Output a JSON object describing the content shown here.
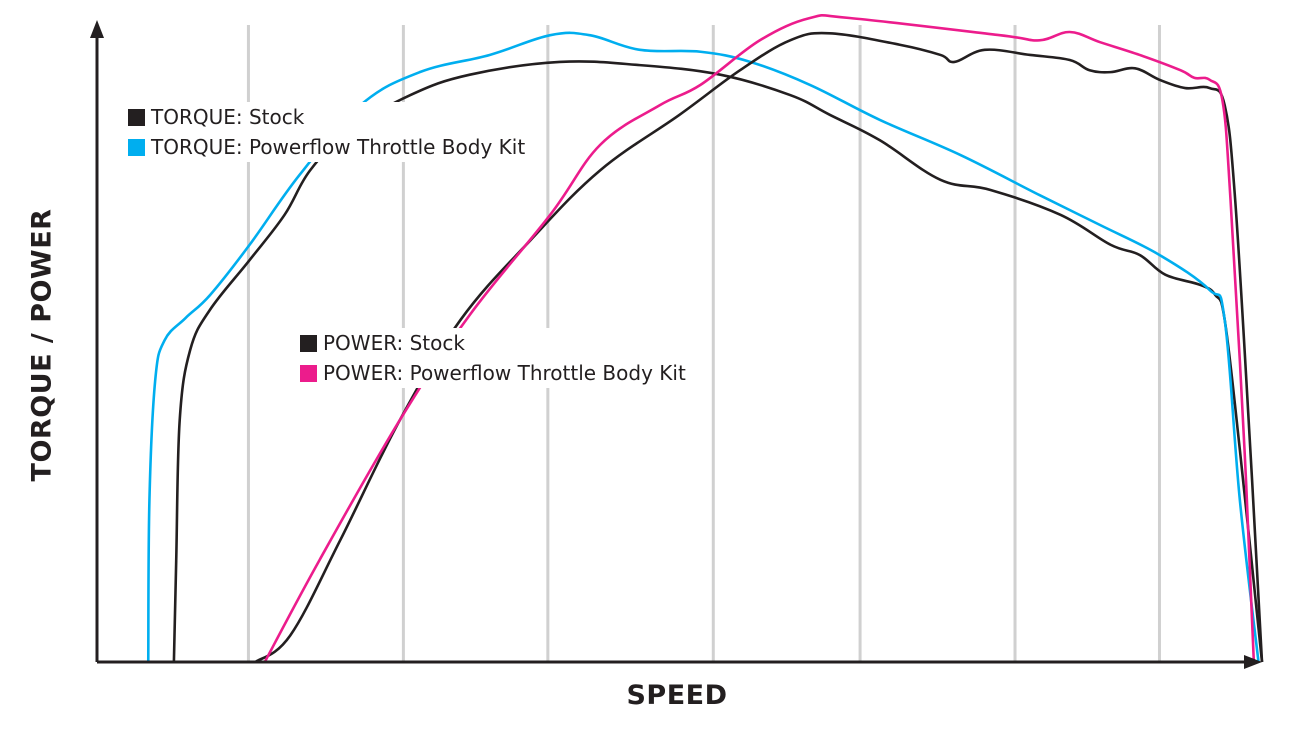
{
  "chart_data": {
    "type": "line",
    "title": "",
    "xlabel": "SPEED",
    "ylabel": "TORQUE / POWER",
    "xlim": [
      0,
      100
    ],
    "ylim": [
      0,
      100
    ],
    "grid_x": [
      13.0,
      26.3,
      38.7,
      52.9,
      65.5,
      78.8,
      91.2
    ],
    "legend_groups": [
      {
        "placement": "top-left",
        "entries": [
          0,
          1
        ]
      },
      {
        "placement": "center-left",
        "entries": [
          2,
          3
        ]
      }
    ],
    "series": [
      {
        "name": "TORQUE: Stock",
        "color": "#231f20",
        "x": [
          6.6,
          6.8,
          7.1,
          8.0,
          9.7,
          13.1,
          16.1,
          18.3,
          21.7,
          26.9,
          32.0,
          39.7,
          46.6,
          53.5,
          59.5,
          62.9,
          67.2,
          72.4,
          76.7,
          82.7,
          87.0,
          89.5,
          91.7,
          94.7,
          96.0,
          96.8,
          98.1,
          100
        ],
        "y": [
          0,
          16.0,
          38.0,
          49.0,
          55.3,
          63.1,
          70.2,
          77.2,
          83.5,
          89.0,
          92.2,
          94.2,
          93.7,
          92.2,
          89.0,
          85.9,
          81.9,
          75.7,
          74.1,
          70.2,
          65.5,
          63.9,
          60.8,
          59.2,
          57.6,
          53.7,
          33.3,
          0
        ]
      },
      {
        "name": "TORQUE: Powerflow Throttle Body Kit",
        "color": "#00aeef",
        "x": [
          4.4,
          4.5,
          5.0,
          5.8,
          7.6,
          9.7,
          13.1,
          17.4,
          22.6,
          27.7,
          33.7,
          38.9,
          42.3,
          46.6,
          51.8,
          56.1,
          61.2,
          67.2,
          74.1,
          80.9,
          86.1,
          91.2,
          95.5,
          96.8,
          98.1,
          99.7
        ],
        "y": [
          0,
          25.4,
          44.3,
          50.5,
          54.0,
          57.6,
          65.5,
          76.5,
          87.4,
          92.6,
          95.3,
          98.4,
          98.4,
          96.1,
          95.8,
          94.2,
          90.6,
          85.1,
          79.6,
          73.3,
          68.6,
          63.9,
          58.4,
          53.7,
          25.4,
          0
        ]
      },
      {
        "name": "POWER: Stock",
        "color": "#231f20",
        "x": [
          13.6,
          16.6,
          20.9,
          26.0,
          31.2,
          37.2,
          43.2,
          50.0,
          55.2,
          59.5,
          62.9,
          68.9,
          72.4,
          73.6,
          76.2,
          80.1,
          83.5,
          85.2,
          87.0,
          89.1,
          91.2,
          93.4,
          95.5,
          96.8,
          97.7,
          99.0,
          100
        ],
        "y": [
          0,
          4.2,
          19.2,
          38.0,
          53.7,
          66.2,
          77.2,
          85.9,
          92.9,
          97.6,
          98.7,
          96.9,
          95.3,
          94.2,
          96.1,
          95.3,
          94.5,
          92.9,
          92.6,
          93.2,
          91.4,
          90.1,
          90.1,
          87.4,
          72.5,
          33.3,
          0
        ]
      },
      {
        "name": "POWER: Powerflow Throttle Body Kit",
        "color": "#ec1c8c",
        "x": [
          14.4,
          19.1,
          26.0,
          32.0,
          38.9,
          43.2,
          48.3,
          51.8,
          56.9,
          61.2,
          64.6,
          77.5,
          80.9,
          83.5,
          86.1,
          89.5,
          93.0,
          94.2,
          95.5,
          96.6,
          97.3,
          98.5,
          99.3
        ],
        "y": [
          0,
          16.0,
          38.0,
          54.5,
          70.2,
          81.2,
          87.4,
          90.6,
          97.6,
          101.1,
          101.1,
          98.4,
          97.6,
          98.9,
          97.3,
          95.3,
          92.9,
          91.7,
          91.4,
          88.2,
          72.5,
          33.3,
          0
        ]
      }
    ]
  }
}
